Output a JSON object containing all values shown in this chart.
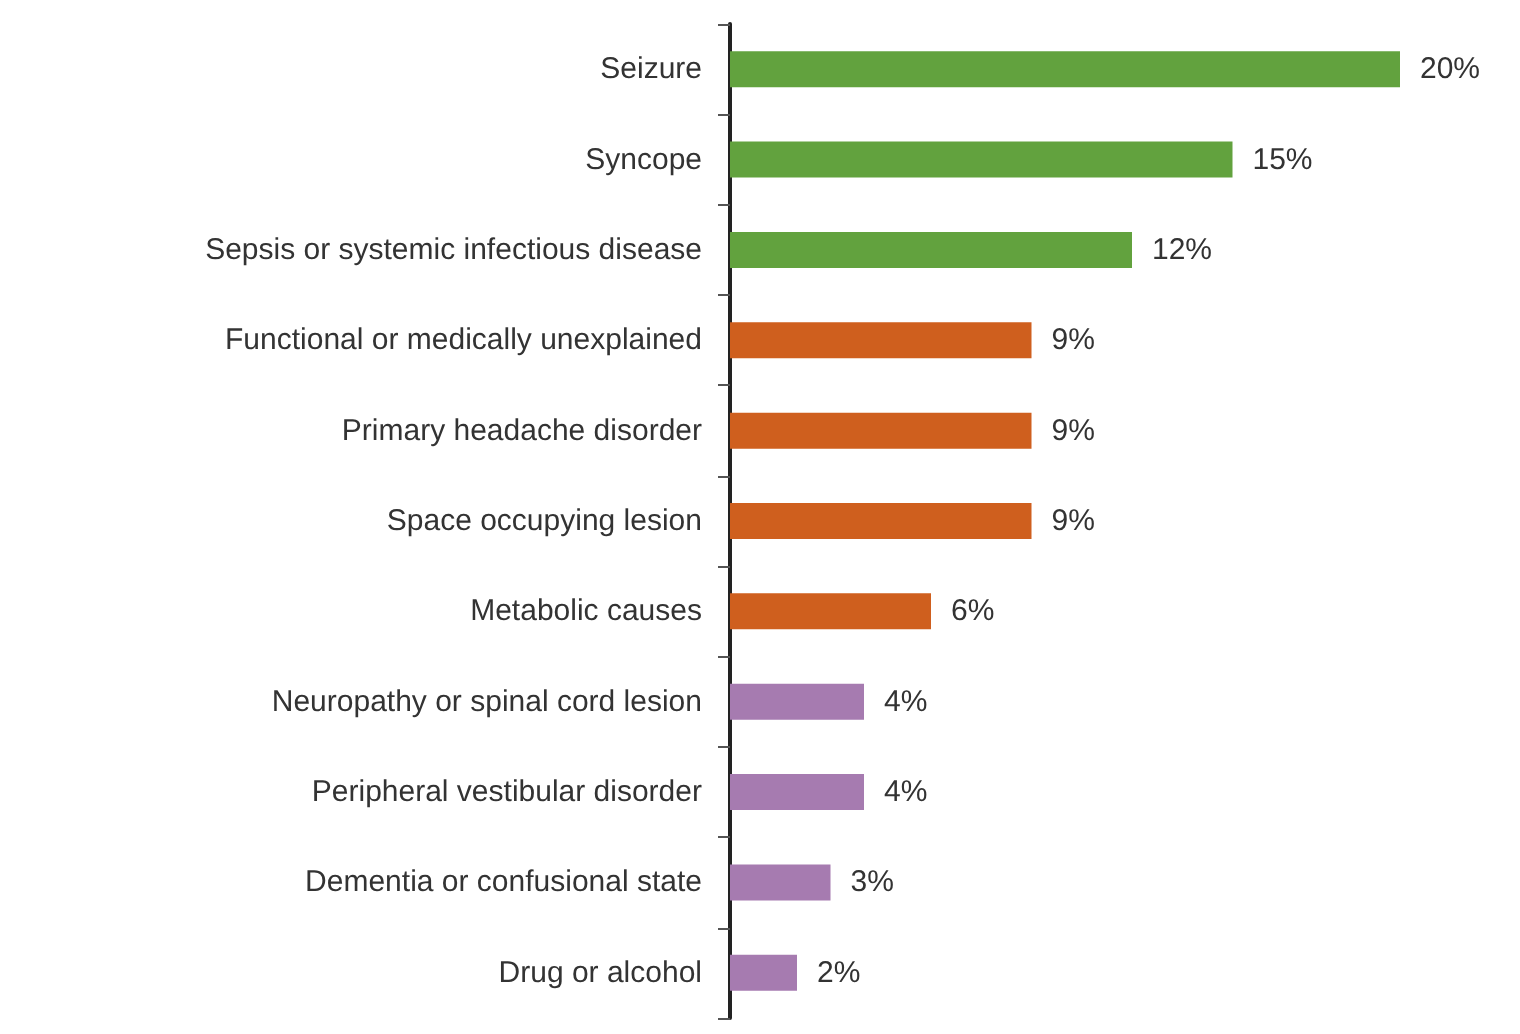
{
  "chart_data": {
    "type": "bar",
    "orientation": "horizontal",
    "categories": [
      "Seizure",
      "Syncope",
      "Sepsis or systemic infectious disease",
      "Functional or medically unexplained",
      "Primary headache disorder",
      "Space occupying lesion",
      "Metabolic causes",
      "Neuropathy or spinal cord lesion",
      "Peripheral vestibular disorder",
      "Dementia or confusional state",
      "Drug or alcohol"
    ],
    "values": [
      20,
      15,
      12,
      9,
      9,
      9,
      6,
      4,
      4,
      3,
      2
    ],
    "colors": [
      "#62a23e",
      "#62a23e",
      "#62a23e",
      "#cf5f1e",
      "#cf5f1e",
      "#cf5f1e",
      "#cf5f1e",
      "#a67bb0",
      "#a67bb0",
      "#a67bb0",
      "#a67bb0"
    ],
    "value_labels": [
      "20%",
      "15%",
      "12%",
      "9%",
      "9%",
      "9%",
      "6%",
      "4%",
      "4%",
      "3%",
      "2%"
    ]
  }
}
